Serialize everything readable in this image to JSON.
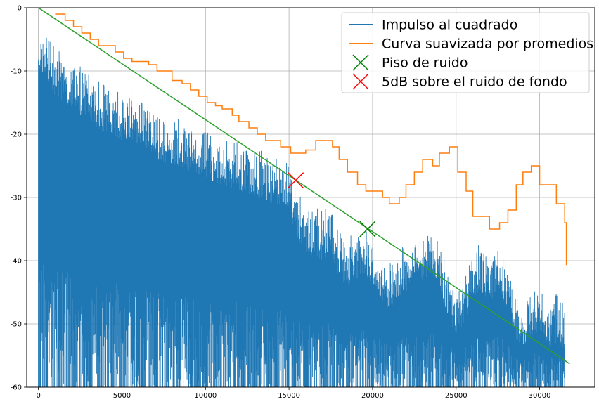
{
  "chart_data": {
    "type": "line",
    "title": "",
    "xlabel": "",
    "ylabel": "",
    "xlim": [
      -700,
      33300
    ],
    "ylim": [
      -60,
      0
    ],
    "grid": true,
    "legend_placement": "top-right",
    "x_ticks": [
      0,
      5000,
      10000,
      15000,
      20000,
      25000,
      30000
    ],
    "y_ticks": [
      0,
      -10,
      -20,
      -30,
      -40,
      -50,
      -60
    ],
    "series": [
      {
        "name": "Impulso al cuadrado",
        "kind": "line",
        "color": "#1f77b4",
        "upper_envelope": [
          [
            0,
            -2
          ],
          [
            500,
            -4
          ],
          [
            1000,
            -6
          ],
          [
            1500,
            -7
          ],
          [
            2000,
            -8
          ],
          [
            3000,
            -10
          ],
          [
            4000,
            -12
          ],
          [
            5000,
            -13
          ],
          [
            6000,
            -14
          ],
          [
            7000,
            -16
          ],
          [
            8000,
            -17
          ],
          [
            9000,
            -18
          ],
          [
            10000,
            -19
          ],
          [
            11000,
            -20
          ],
          [
            12000,
            -21
          ],
          [
            13000,
            -22
          ],
          [
            14000,
            -23
          ],
          [
            15000,
            -24
          ],
          [
            15500,
            -29
          ],
          [
            16000,
            -31
          ],
          [
            17000,
            -32
          ],
          [
            17500,
            -31
          ],
          [
            18000,
            -35
          ],
          [
            18500,
            -36
          ],
          [
            19000,
            -35
          ],
          [
            19500,
            -34
          ],
          [
            20000,
            -36
          ],
          [
            20500,
            -38
          ],
          [
            21000,
            -40
          ],
          [
            21500,
            -38
          ],
          [
            22000,
            -37
          ],
          [
            23000,
            -35
          ],
          [
            23500,
            -34
          ],
          [
            24000,
            -37
          ],
          [
            24500,
            -41
          ],
          [
            25000,
            -44
          ],
          [
            25500,
            -42
          ],
          [
            26000,
            -38
          ],
          [
            26500,
            -37
          ],
          [
            27000,
            -39
          ],
          [
            27500,
            -37
          ],
          [
            28000,
            -39
          ],
          [
            28500,
            -44
          ],
          [
            29000,
            -46
          ],
          [
            29500,
            -44
          ],
          [
            30000,
            -43
          ],
          [
            30500,
            -46
          ],
          [
            31000,
            -45
          ],
          [
            31500,
            -46
          ]
        ],
        "lower_floor": -60
      },
      {
        "name": "Curva suavizada por promedios",
        "kind": "step",
        "color": "#ff7f0e",
        "x": [
          1000,
          1600,
          2100,
          2600,
          3100,
          3600,
          4000,
          4600,
          5100,
          5600,
          6000,
          6600,
          7100,
          7600,
          8000,
          8600,
          9100,
          9600,
          10100,
          10600,
          11000,
          11600,
          12000,
          12600,
          13100,
          13600,
          14000,
          14500,
          15100,
          15600,
          16000,
          16600,
          17000,
          17600,
          18000,
          18500,
          19100,
          19600,
          20100,
          20600,
          21000,
          21600,
          22000,
          22500,
          23000,
          23600,
          24000,
          24600,
          25100,
          25600,
          26000,
          26600,
          27000,
          27600,
          28100,
          28600,
          29000,
          29500,
          30000,
          30600,
          31000,
          31500
        ],
        "y": [
          -1,
          -2,
          -3,
          -4,
          -5,
          -6,
          -6,
          -7,
          -8,
          -8.5,
          -8.5,
          -9,
          -10,
          -10,
          -11.5,
          -12,
          -13,
          -14,
          -15,
          -15.5,
          -16,
          -17,
          -18,
          -19,
          -20,
          -21,
          -21,
          -22,
          -23,
          -23,
          -22.5,
          -21,
          -21,
          -22,
          -24,
          -26,
          -28,
          -29,
          -29,
          -30,
          -31,
          -30,
          -28,
          -26,
          -24,
          -25,
          -23,
          -22,
          -26,
          -29,
          -33,
          -33,
          -35,
          -34,
          -32,
          -28,
          -26,
          -25,
          -28,
          -28,
          -31,
          -34
        ]
      },
      {
        "name": "",
        "kind": "line",
        "color": "#2ca02c",
        "x": [
          0,
          31800
        ],
        "y": [
          0,
          -56.3
        ]
      },
      {
        "name": "Piso de ruido",
        "kind": "marker",
        "marker": "x",
        "color": "#008000",
        "x": [
          19700
        ],
        "y": [
          -35
        ]
      },
      {
        "name": "5dB sobre el ruido de fondo",
        "kind": "marker",
        "marker": "x",
        "color": "#ff0000",
        "x": [
          15400
        ],
        "y": [
          -27.3
        ]
      }
    ],
    "legend": [
      {
        "label": "Impulso al cuadrado",
        "symbol": "line",
        "color": "#1f77b4"
      },
      {
        "label": "Curva suavizada por promedios",
        "symbol": "line",
        "color": "#ff7f0e"
      },
      {
        "label": "Piso de ruido",
        "symbol": "x",
        "color": "#008000"
      },
      {
        "label": "5dB sobre el ruido de fondo",
        "symbol": "x",
        "color": "#ff0000"
      }
    ]
  }
}
